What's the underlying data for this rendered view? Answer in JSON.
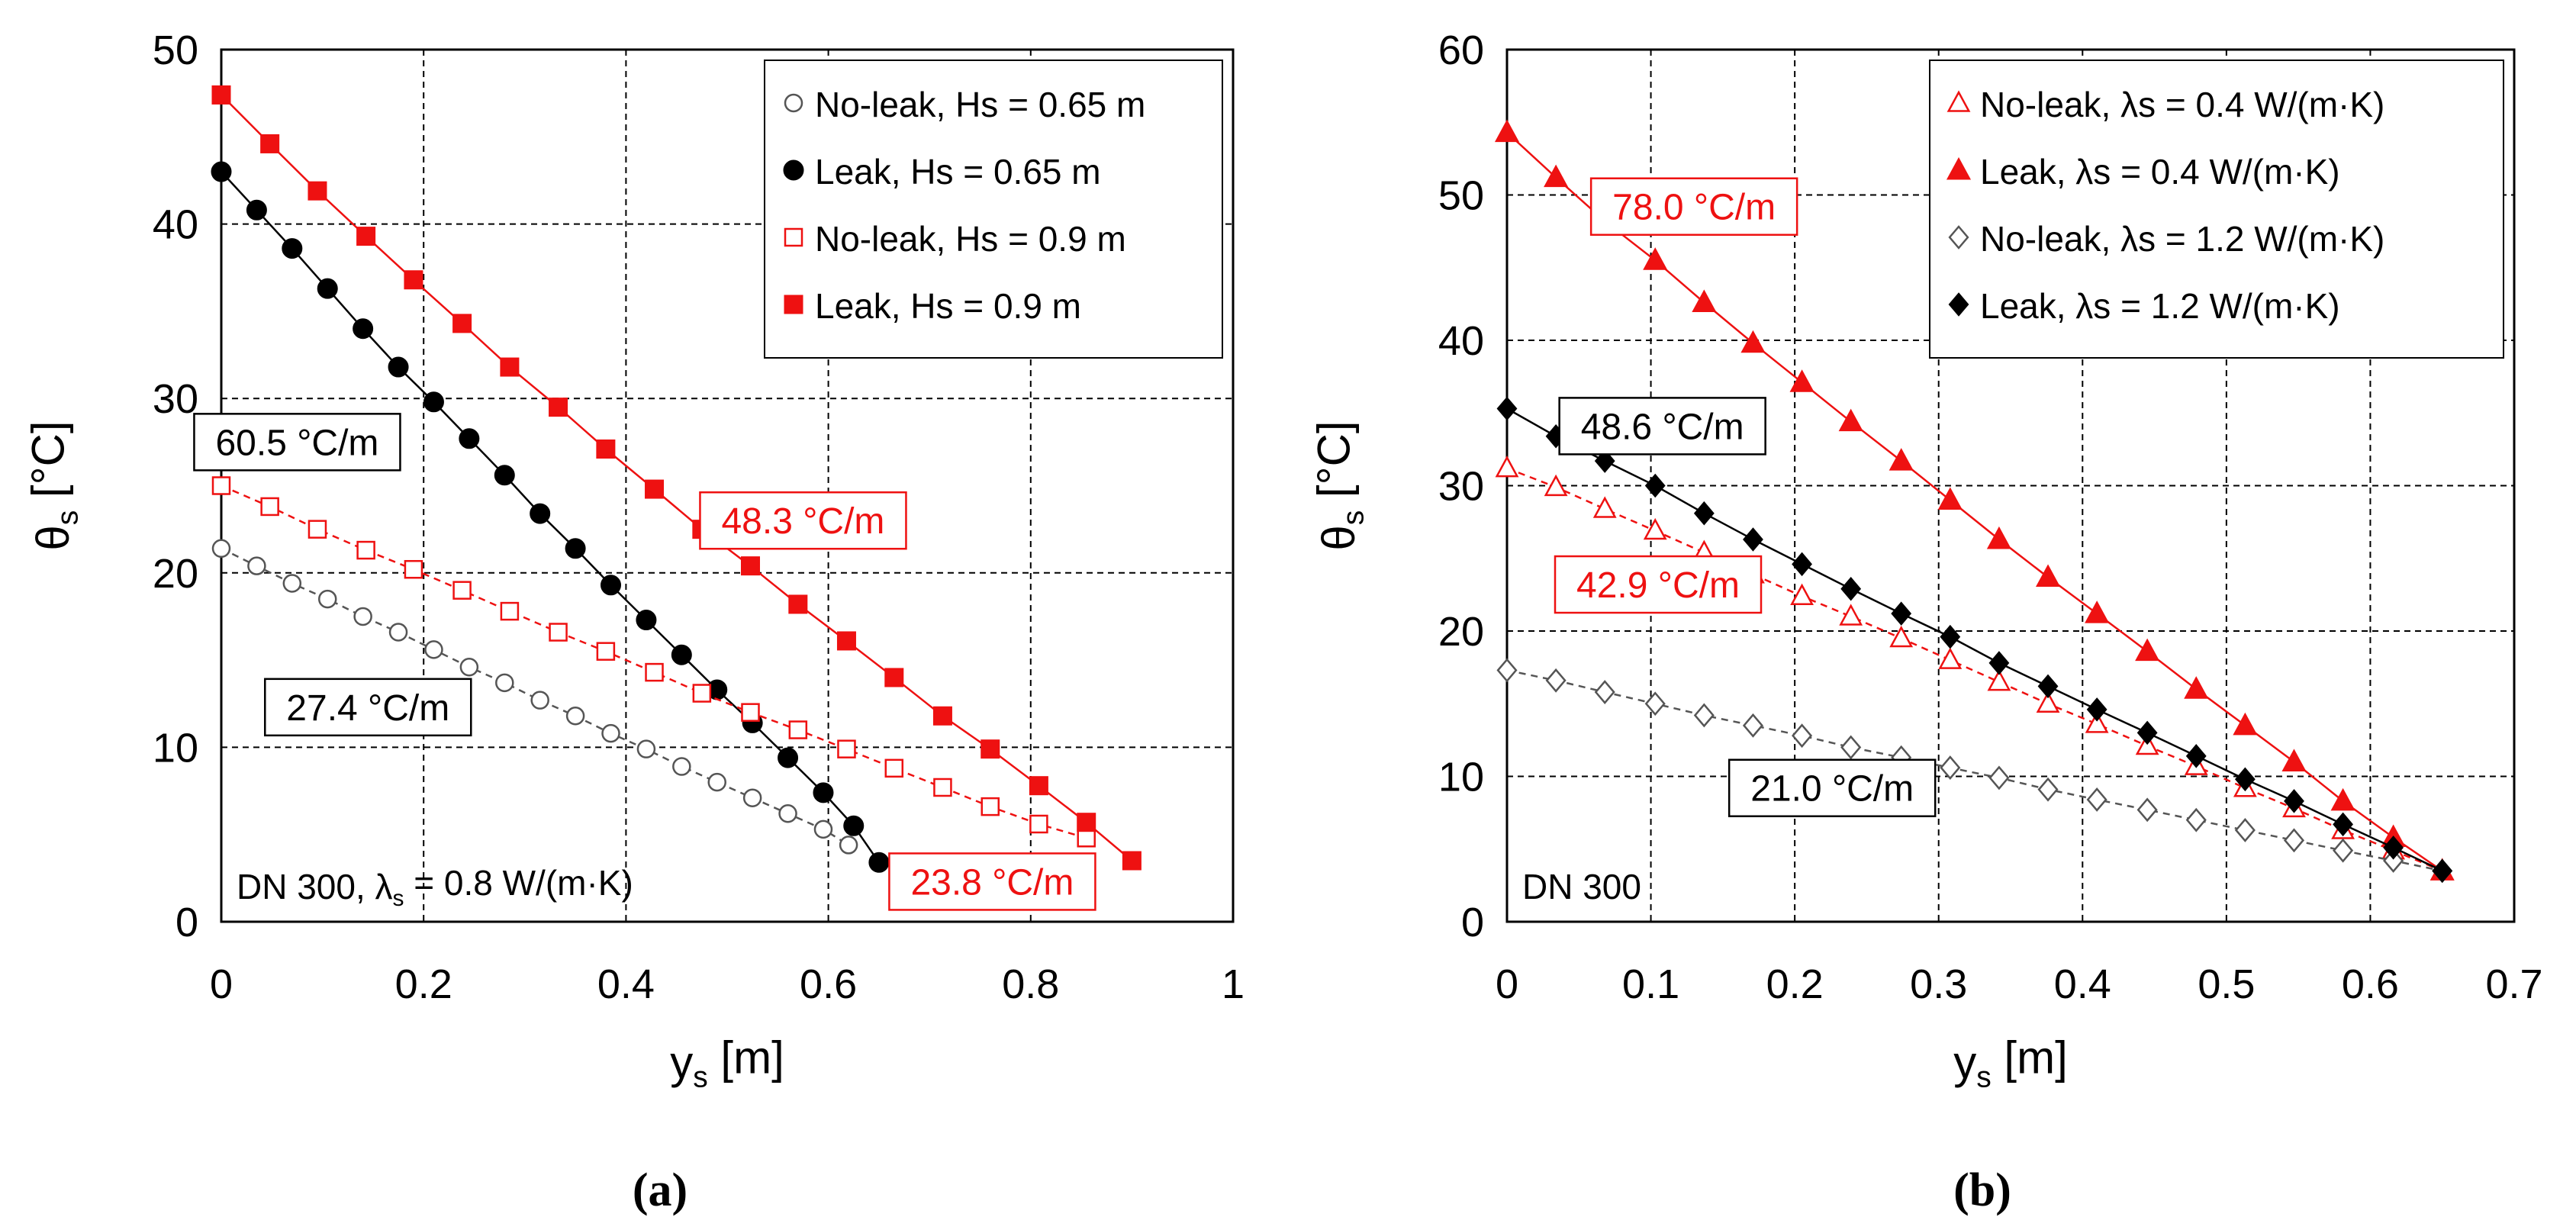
{
  "figure": {
    "caption_a": "(a)",
    "caption_b": "(b)"
  },
  "chart_data": [
    {
      "type": "scatter",
      "panel": "a",
      "xlabel": "y",
      "xlabel_sub": "s",
      "xlabel_unit": " [m]",
      "ylabel": "θ",
      "ylabel_sub": "s",
      "ylabel_unit": " [°C]",
      "xlim": [
        0,
        1
      ],
      "ylim": [
        0,
        50
      ],
      "xticks": [
        0,
        0.2,
        0.4,
        0.6,
        0.8,
        1
      ],
      "xtick_labels": [
        "0",
        "0.2",
        "0.4",
        "0.6",
        "0.8",
        "1"
      ],
      "yticks": [
        0,
        10,
        20,
        30,
        40,
        50
      ],
      "ytick_labels": [
        "0",
        "10",
        "20",
        "30",
        "40",
        "50"
      ],
      "grid": "dashed",
      "legend_position": "top-right",
      "series": [
        {
          "name": "No-leak, Hs = 0.65 m",
          "marker": "circle-open",
          "color": "#555555",
          "line": "dashed",
          "x": [
            0,
            0.035,
            0.07,
            0.105,
            0.14,
            0.175,
            0.21,
            0.245,
            0.28,
            0.315,
            0.35,
            0.385,
            0.42,
            0.455,
            0.49,
            0.525,
            0.56,
            0.595,
            0.62
          ],
          "y": [
            21.4,
            20.4,
            19.4,
            18.5,
            17.5,
            16.6,
            15.6,
            14.6,
            13.7,
            12.7,
            11.8,
            10.8,
            9.9,
            8.9,
            8.0,
            7.1,
            6.2,
            5.3,
            4.4
          ]
        },
        {
          "name": "Leak, Hs = 0.65 m",
          "marker": "circle-filled",
          "color": "#000000",
          "line": "solid",
          "x": [
            0,
            0.035,
            0.07,
            0.105,
            0.14,
            0.175,
            0.21,
            0.245,
            0.28,
            0.315,
            0.35,
            0.385,
            0.42,
            0.455,
            0.49,
            0.525,
            0.56,
            0.595,
            0.625,
            0.65
          ],
          "y": [
            43.0,
            40.8,
            38.6,
            36.3,
            34.0,
            31.8,
            29.8,
            27.7,
            25.6,
            23.4,
            21.4,
            19.3,
            17.3,
            15.3,
            13.3,
            11.4,
            9.4,
            7.4,
            5.5,
            3.4
          ]
        },
        {
          "name": "No-leak, Hs = 0.9 m",
          "marker": "square-open",
          "color": "#ee1111",
          "line": "dashed",
          "x": [
            0,
            0.048,
            0.095,
            0.143,
            0.19,
            0.238,
            0.285,
            0.333,
            0.38,
            0.428,
            0.475,
            0.523,
            0.57,
            0.618,
            0.665,
            0.713,
            0.76,
            0.808,
            0.855
          ],
          "y": [
            25.0,
            23.8,
            22.5,
            21.3,
            20.2,
            19.0,
            17.8,
            16.6,
            15.5,
            14.3,
            13.1,
            12.0,
            11.0,
            9.9,
            8.8,
            7.7,
            6.6,
            5.6,
            4.8
          ]
        },
        {
          "name": "Leak, Hs = 0.9 m",
          "marker": "square-filled",
          "color": "#ee1111",
          "line": "solid",
          "x": [
            0,
            0.048,
            0.095,
            0.143,
            0.19,
            0.238,
            0.285,
            0.333,
            0.38,
            0.428,
            0.475,
            0.523,
            0.57,
            0.618,
            0.665,
            0.713,
            0.76,
            0.808,
            0.855,
            0.9
          ],
          "y": [
            47.4,
            44.6,
            41.9,
            39.3,
            36.8,
            34.3,
            31.8,
            29.5,
            27.1,
            24.8,
            22.5,
            20.4,
            18.2,
            16.1,
            14.0,
            11.8,
            9.9,
            7.8,
            5.7,
            3.5
          ]
        }
      ],
      "annotations": [
        {
          "text": "60.5 °C/m",
          "color": "#000000",
          "x": 0.075,
          "y": 27.5
        },
        {
          "text": "48.3 °C/m",
          "color": "#ee1111",
          "x": 0.575,
          "y": 23.0
        },
        {
          "text": "27.4 °C/m",
          "color": "#000000",
          "x": 0.145,
          "y": 12.3
        },
        {
          "text": "23.8 °C/m",
          "color": "#ee1111",
          "x": 0.762,
          "y": 2.3
        }
      ],
      "note": {
        "prefix": "DN 300, λ",
        "sub": "s",
        "suffix": " = 0.8 W/(m·K)"
      }
    },
    {
      "type": "scatter",
      "panel": "b",
      "xlabel": "y",
      "xlabel_sub": "s",
      "xlabel_unit": " [m]",
      "ylabel": "θ",
      "ylabel_sub": "s",
      "ylabel_unit": " [°C]",
      "xlim": [
        0,
        0.7
      ],
      "ylim": [
        0,
        60
      ],
      "xticks": [
        0,
        0.1,
        0.2,
        0.3,
        0.4,
        0.5,
        0.6,
        0.7
      ],
      "xtick_labels": [
        "0",
        "0.1",
        "0.2",
        "0.3",
        "0.4",
        "0.5",
        "0.6",
        "0.7"
      ],
      "yticks": [
        0,
        10,
        20,
        30,
        40,
        50,
        60
      ],
      "ytick_labels": [
        "0",
        "10",
        "20",
        "30",
        "40",
        "50",
        "60"
      ],
      "grid": "dashed",
      "legend_position": "top-right",
      "series": [
        {
          "name": "No-leak, λs = 0.4 W/(m·K)",
          "marker": "triangle-open",
          "color": "#ee1111",
          "line": "dashed",
          "x": [
            0,
            0.034,
            0.068,
            0.103,
            0.137,
            0.171,
            0.205,
            0.239,
            0.274,
            0.308,
            0.342,
            0.376,
            0.41,
            0.445,
            0.479,
            0.513,
            0.547,
            0.581,
            0.616,
            0.65
          ],
          "y": [
            31.2,
            29.9,
            28.4,
            26.9,
            25.4,
            23.9,
            22.4,
            21.0,
            19.5,
            18.0,
            16.5,
            15.0,
            13.6,
            12.1,
            10.7,
            9.2,
            7.8,
            6.3,
            4.9,
            3.5
          ]
        },
        {
          "name": "Leak, λs = 0.4 W/(m·K)",
          "marker": "triangle-filled",
          "color": "#ee1111",
          "line": "solid",
          "x": [
            0,
            0.034,
            0.068,
            0.103,
            0.137,
            0.171,
            0.205,
            0.239,
            0.274,
            0.308,
            0.342,
            0.376,
            0.41,
            0.445,
            0.479,
            0.513,
            0.547,
            0.581,
            0.616,
            0.65
          ],
          "y": [
            54.3,
            51.2,
            48.2,
            45.5,
            42.6,
            39.8,
            37.1,
            34.4,
            31.7,
            29.0,
            26.3,
            23.7,
            21.2,
            18.6,
            16.0,
            13.5,
            11.0,
            8.3,
            5.8,
            3.5
          ]
        },
        {
          "name": "No-leak, λs = 1.2 W/(m·K)",
          "marker": "diamond-open",
          "color": "#555555",
          "line": "dashed",
          "x": [
            0,
            0.034,
            0.068,
            0.103,
            0.137,
            0.171,
            0.205,
            0.239,
            0.274,
            0.308,
            0.342,
            0.376,
            0.41,
            0.445,
            0.479,
            0.513,
            0.547,
            0.581,
            0.616,
            0.65
          ],
          "y": [
            17.3,
            16.6,
            15.8,
            15.0,
            14.2,
            13.5,
            12.8,
            12.0,
            11.3,
            10.6,
            9.9,
            9.1,
            8.4,
            7.7,
            7.0,
            6.3,
            5.6,
            4.9,
            4.2,
            3.5
          ]
        },
        {
          "name": "Leak, λs = 1.2 W/(m·K)",
          "marker": "diamond-filled",
          "color": "#000000",
          "line": "solid",
          "x": [
            0,
            0.034,
            0.068,
            0.103,
            0.137,
            0.171,
            0.205,
            0.239,
            0.274,
            0.308,
            0.342,
            0.376,
            0.41,
            0.445,
            0.479,
            0.513,
            0.547,
            0.581,
            0.616,
            0.65
          ],
          "y": [
            35.3,
            33.4,
            31.7,
            30.0,
            28.1,
            26.3,
            24.6,
            22.9,
            21.2,
            19.6,
            17.8,
            16.2,
            14.6,
            13.0,
            11.4,
            9.8,
            8.3,
            6.7,
            5.1,
            3.5
          ]
        }
      ],
      "annotations": [
        {
          "text": "78.0 °C/m",
          "color": "#ee1111",
          "x": 0.13,
          "y": 49.2
        },
        {
          "text": "48.6 °C/m",
          "color": "#000000",
          "x": 0.108,
          "y": 34.1
        },
        {
          "text": "42.9 °C/m",
          "color": "#ee1111",
          "x": 0.105,
          "y": 23.2
        },
        {
          "text": "21.0 °C/m",
          "color": "#000000",
          "x": 0.226,
          "y": 9.2
        }
      ],
      "note": {
        "prefix": "DN 300",
        "sub": "",
        "suffix": ""
      }
    }
  ]
}
